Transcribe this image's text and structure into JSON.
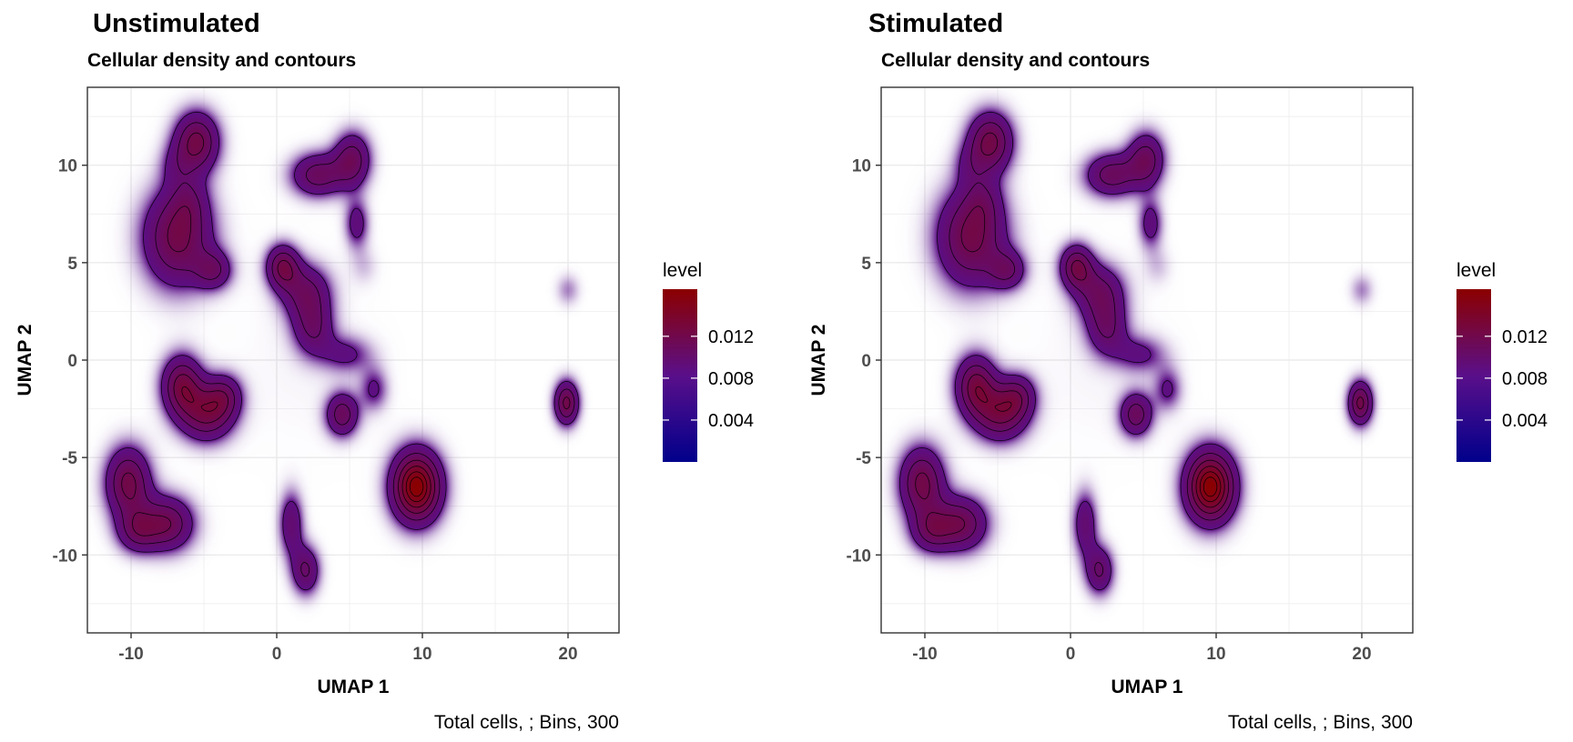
{
  "chart_data": [
    {
      "type": "heatmap",
      "title": "Unstimulated",
      "subtitle": "Cellular density and contours",
      "xlabel": "UMAP 1",
      "ylabel": "UMAP 2",
      "caption": "Total cells, ; Bins, 300",
      "xlim": [
        -13,
        23.5
      ],
      "ylim": [
        -14,
        14
      ],
      "xticks": [
        -10,
        0,
        10,
        20
      ],
      "yticks": [
        -10,
        -5,
        0,
        5,
        10
      ],
      "xtick_labels": [
        "-10",
        "0",
        "10",
        "20"
      ],
      "ytick_labels": [
        "-10",
        "-5",
        "0",
        "5",
        "10"
      ],
      "grid": true,
      "legend": {
        "title": "level",
        "position": "right",
        "range": [
          0,
          0.0165
        ],
        "ticks": [
          0.004,
          0.008,
          0.012
        ],
        "tick_labels": [
          "0.004",
          "0.008",
          "0.012"
        ]
      },
      "colors": {
        "low": "#00008b",
        "mid": "#5a0f8a",
        "high": "#8b0000",
        "contour": "#000000"
      },
      "clusters": [
        {
          "x": -5.5,
          "y": 11.2,
          "sx": 1.1,
          "sy": 1.1,
          "w": 1.0
        },
        {
          "x": -7.0,
          "y": 10.0,
          "sx": 0.8,
          "sy": 0.8,
          "w": 0.25
        },
        {
          "x": -6.8,
          "y": 6.3,
          "sx": 1.7,
          "sy": 1.8,
          "w": 1.0
        },
        {
          "x": -4.3,
          "y": 4.6,
          "sx": 0.9,
          "sy": 0.7,
          "w": 0.6
        },
        {
          "x": -6.0,
          "y": 8.2,
          "sx": 0.9,
          "sy": 0.9,
          "w": 0.3
        },
        {
          "x": 2.8,
          "y": 9.5,
          "sx": 1.3,
          "sy": 0.8,
          "w": 0.8
        },
        {
          "x": 5.2,
          "y": 10.3,
          "sx": 0.9,
          "sy": 1.0,
          "w": 0.8
        },
        {
          "x": 5.5,
          "y": 7.0,
          "sx": 0.6,
          "sy": 0.9,
          "w": 0.5
        },
        {
          "x": 0.4,
          "y": 4.8,
          "sx": 0.8,
          "sy": 0.8,
          "w": 0.9
        },
        {
          "x": 2.0,
          "y": 3.5,
          "sx": 1.2,
          "sy": 1.0,
          "w": 0.7
        },
        {
          "x": 2.5,
          "y": 1.6,
          "sx": 1.0,
          "sy": 1.0,
          "w": 0.6
        },
        {
          "x": 4.8,
          "y": 0.3,
          "sx": 1.3,
          "sy": 0.7,
          "w": 0.4
        },
        {
          "x": 6.7,
          "y": -1.5,
          "sx": 0.7,
          "sy": 0.8,
          "w": 0.4
        },
        {
          "x": 4.5,
          "y": -2.8,
          "sx": 0.8,
          "sy": 0.8,
          "w": 0.8
        },
        {
          "x": 6.0,
          "y": 4.8,
          "sx": 0.7,
          "sy": 0.7,
          "w": 0.15
        },
        {
          "x": -6.5,
          "y": -1.3,
          "sx": 1.0,
          "sy": 1.1,
          "w": 1.0
        },
        {
          "x": -4.8,
          "y": -2.8,
          "sx": 1.3,
          "sy": 1.0,
          "w": 0.9
        },
        {
          "x": -3.6,
          "y": -1.8,
          "sx": 0.9,
          "sy": 0.8,
          "w": 0.6
        },
        {
          "x": -10.2,
          "y": -6.3,
          "sx": 1.1,
          "sy": 1.3,
          "w": 1.0
        },
        {
          "x": -7.5,
          "y": -8.4,
          "sx": 1.3,
          "sy": 1.0,
          "w": 0.9
        },
        {
          "x": -9.6,
          "y": -8.8,
          "sx": 1.0,
          "sy": 0.8,
          "w": 0.6
        },
        {
          "x": 9.6,
          "y": -6.5,
          "sx": 1.2,
          "sy": 1.3,
          "w": 1.6
        },
        {
          "x": 1.0,
          "y": -8.4,
          "sx": 0.6,
          "sy": 1.2,
          "w": 0.6
        },
        {
          "x": 2.0,
          "y": -10.8,
          "sx": 0.7,
          "sy": 0.9,
          "w": 0.7
        },
        {
          "x": 19.9,
          "y": -2.2,
          "sx": 0.6,
          "sy": 0.8,
          "w": 1.0
        },
        {
          "x": 20.0,
          "y": 3.6,
          "sx": 0.6,
          "sy": 0.6,
          "w": 0.25
        },
        {
          "x": 1.8,
          "y": 0.0,
          "sx": 3.5,
          "sy": 3.5,
          "w": 0.05
        }
      ]
    },
    {
      "type": "heatmap",
      "title": "Stimulated",
      "subtitle": "Cellular density and contours",
      "xlabel": "UMAP 1",
      "ylabel": "UMAP 2",
      "caption": "Total cells, ; Bins, 300",
      "xlim": [
        -13,
        23.5
      ],
      "ylim": [
        -14,
        14
      ],
      "xticks": [
        -10,
        0,
        10,
        20
      ],
      "yticks": [
        -10,
        -5,
        0,
        5,
        10
      ],
      "xtick_labels": [
        "-10",
        "0",
        "10",
        "20"
      ],
      "ytick_labels": [
        "-10",
        "-5",
        "0",
        "5",
        "10"
      ],
      "grid": true,
      "legend": {
        "title": "level",
        "position": "right",
        "range": [
          0,
          0.0165
        ],
        "ticks": [
          0.004,
          0.008,
          0.012
        ],
        "tick_labels": [
          "0.004",
          "0.008",
          "0.012"
        ]
      },
      "colors": {
        "low": "#00008b",
        "mid": "#5a0f8a",
        "high": "#8b0000",
        "contour": "#000000"
      },
      "clusters": [
        {
          "x": -5.5,
          "y": 11.2,
          "sx": 1.1,
          "sy": 1.1,
          "w": 1.0
        },
        {
          "x": -7.0,
          "y": 10.0,
          "sx": 0.8,
          "sy": 0.8,
          "w": 0.25
        },
        {
          "x": -6.8,
          "y": 6.3,
          "sx": 1.7,
          "sy": 1.8,
          "w": 1.0
        },
        {
          "x": -4.3,
          "y": 4.6,
          "sx": 0.9,
          "sy": 0.7,
          "w": 0.6
        },
        {
          "x": -6.0,
          "y": 8.2,
          "sx": 0.9,
          "sy": 0.9,
          "w": 0.3
        },
        {
          "x": 2.8,
          "y": 9.5,
          "sx": 1.3,
          "sy": 0.8,
          "w": 0.8
        },
        {
          "x": 5.2,
          "y": 10.3,
          "sx": 0.9,
          "sy": 1.0,
          "w": 0.8
        },
        {
          "x": 5.5,
          "y": 7.0,
          "sx": 0.6,
          "sy": 0.9,
          "w": 0.5
        },
        {
          "x": 0.4,
          "y": 4.8,
          "sx": 0.8,
          "sy": 0.8,
          "w": 0.9
        },
        {
          "x": 2.0,
          "y": 3.5,
          "sx": 1.2,
          "sy": 1.0,
          "w": 0.7
        },
        {
          "x": 2.5,
          "y": 1.6,
          "sx": 1.0,
          "sy": 1.0,
          "w": 0.6
        },
        {
          "x": 4.8,
          "y": 0.3,
          "sx": 1.3,
          "sy": 0.7,
          "w": 0.4
        },
        {
          "x": 6.7,
          "y": -1.5,
          "sx": 0.7,
          "sy": 0.8,
          "w": 0.4
        },
        {
          "x": 4.5,
          "y": -2.8,
          "sx": 0.8,
          "sy": 0.8,
          "w": 0.8
        },
        {
          "x": 6.0,
          "y": 4.8,
          "sx": 0.7,
          "sy": 0.7,
          "w": 0.15
        },
        {
          "x": -6.5,
          "y": -1.3,
          "sx": 1.0,
          "sy": 1.1,
          "w": 1.0
        },
        {
          "x": -4.8,
          "y": -2.8,
          "sx": 1.3,
          "sy": 1.0,
          "w": 0.9
        },
        {
          "x": -3.6,
          "y": -1.8,
          "sx": 0.9,
          "sy": 0.8,
          "w": 0.6
        },
        {
          "x": -10.2,
          "y": -6.3,
          "sx": 1.1,
          "sy": 1.3,
          "w": 1.0
        },
        {
          "x": -7.5,
          "y": -8.4,
          "sx": 1.3,
          "sy": 1.0,
          "w": 0.9
        },
        {
          "x": -9.6,
          "y": -8.8,
          "sx": 1.0,
          "sy": 0.8,
          "w": 0.6
        },
        {
          "x": 9.6,
          "y": -6.5,
          "sx": 1.2,
          "sy": 1.3,
          "w": 1.6
        },
        {
          "x": 1.0,
          "y": -8.4,
          "sx": 0.6,
          "sy": 1.2,
          "w": 0.6
        },
        {
          "x": 2.0,
          "y": -10.8,
          "sx": 0.7,
          "sy": 0.9,
          "w": 0.7
        },
        {
          "x": 19.9,
          "y": -2.2,
          "sx": 0.6,
          "sy": 0.8,
          "w": 1.0
        },
        {
          "x": 20.0,
          "y": 3.6,
          "sx": 0.6,
          "sy": 0.6,
          "w": 0.25
        },
        {
          "x": 1.8,
          "y": 0.0,
          "sx": 3.5,
          "sy": 3.5,
          "w": 0.05
        }
      ]
    }
  ]
}
